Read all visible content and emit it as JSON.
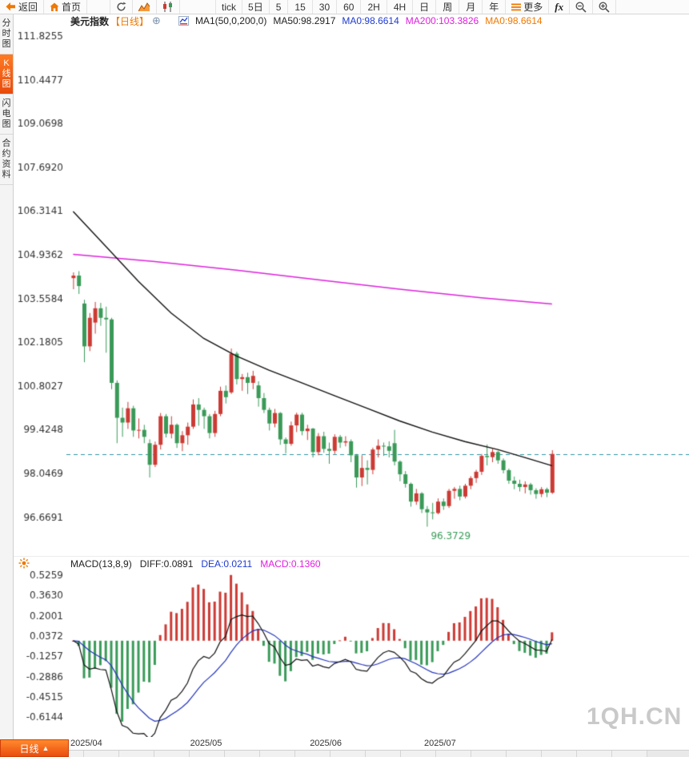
{
  "toolbar": {
    "back": "返回",
    "home": "首页",
    "tick": "tick",
    "five_day": "5日",
    "periods": [
      "5",
      "15",
      "30",
      "60",
      "2H",
      "4H",
      "日",
      "周",
      "月",
      "年"
    ],
    "more": "更多",
    "fx": "fx"
  },
  "sidebar": {
    "items": [
      {
        "label": "分时图",
        "active": false
      },
      {
        "label": "K线图",
        "active": true
      },
      {
        "label": "闪电图",
        "active": false
      },
      {
        "label": "合约资料",
        "active": false
      }
    ]
  },
  "chart_header": {
    "title": "美元指数",
    "period_tag": "【日线】",
    "add_symbol": "⊕",
    "ma_group": "MA1(50,0,200,0)",
    "ma50": "MA50:98.2917",
    "ma0_blue": "MA0:98.6614",
    "ma200": "MA200:103.3826",
    "ma0_orange": "MA0:98.6614"
  },
  "macd_header": {
    "name": "MACD(13,8,9)",
    "diff": "DIFF:0.0891",
    "dea": "DEA:0.0211",
    "macd": "MACD:0.1360"
  },
  "bottom": {
    "period_tab": "日线",
    "tab_arrow": "▲"
  },
  "watermark": "1QH.CN",
  "chart_data": {
    "type": "candlestick",
    "symbol": "美元指数",
    "interval": "日线",
    "current_price": 98.6614,
    "y_ticks": [
      111.8255,
      110.4477,
      109.0698,
      107.692,
      106.3141,
      104.9362,
      103.5584,
      102.1805,
      100.8027,
      99.4248,
      98.0469,
      96.6691
    ],
    "x_ticks": [
      {
        "index": 0,
        "label": "2025/04"
      },
      {
        "index": 22,
        "label": "2025/05"
      },
      {
        "index": 44,
        "label": "2025/06"
      },
      {
        "index": 65,
        "label": "2025/07"
      }
    ],
    "low_annotation": {
      "index": 65,
      "label": "96.3729"
    },
    "candles": [
      [
        104.2,
        104.38,
        103.85,
        104.28
      ],
      [
        104.28,
        104.42,
        103.7,
        103.95
      ],
      [
        103.4,
        103.52,
        101.55,
        102.05
      ],
      [
        102.05,
        103.1,
        101.9,
        102.95
      ],
      [
        102.8,
        103.45,
        102.45,
        103.25
      ],
      [
        103.25,
        103.42,
        102.7,
        102.95
      ],
      [
        102.95,
        103.3,
        101.85,
        102.9
      ],
      [
        102.9,
        102.95,
        100.7,
        100.9
      ],
      [
        100.9,
        100.98,
        99.0,
        99.8
      ],
      [
        99.8,
        100.12,
        99.2,
        99.65
      ],
      [
        99.65,
        100.3,
        99.45,
        100.1
      ],
      [
        100.1,
        100.18,
        99.2,
        99.4
      ],
      [
        99.4,
        99.78,
        99.15,
        99.42
      ],
      [
        99.42,
        99.58,
        99.0,
        99.2
      ],
      [
        99.0,
        99.12,
        97.92,
        98.32
      ],
      [
        98.32,
        99.05,
        98.25,
        98.95
      ],
      [
        98.95,
        99.95,
        98.8,
        99.85
      ],
      [
        99.85,
        99.92,
        99.18,
        99.3
      ],
      [
        99.3,
        99.85,
        99.15,
        99.58
      ],
      [
        99.58,
        99.62,
        98.85,
        99.0
      ],
      [
        99.0,
        99.38,
        98.75,
        99.25
      ],
      [
        99.25,
        99.65,
        98.95,
        99.52
      ],
      [
        99.52,
        100.38,
        99.45,
        100.22
      ],
      [
        100.22,
        100.42,
        99.55,
        100.05
      ],
      [
        100.05,
        100.12,
        99.45,
        99.85
      ],
      [
        99.85,
        99.92,
        99.15,
        99.32
      ],
      [
        99.32,
        100.02,
        99.2,
        99.92
      ],
      [
        99.92,
        100.78,
        99.85,
        100.65
      ],
      [
        100.65,
        100.82,
        100.25,
        100.45
      ],
      [
        100.6,
        101.98,
        100.55,
        101.82
      ],
      [
        101.82,
        101.88,
        100.85,
        101.02
      ],
      [
        101.02,
        101.18,
        100.65,
        101.08
      ],
      [
        101.08,
        101.22,
        100.55,
        100.9
      ],
      [
        100.9,
        101.28,
        100.7,
        101.12
      ],
      [
        100.82,
        100.95,
        100.15,
        100.42
      ],
      [
        100.42,
        100.58,
        99.95,
        100.05
      ],
      [
        100.05,
        100.12,
        99.4,
        99.62
      ],
      [
        99.62,
        100.08,
        99.5,
        99.95
      ],
      [
        99.95,
        99.98,
        98.95,
        99.12
      ],
      [
        99.12,
        99.18,
        98.68,
        98.98
      ],
      [
        98.98,
        99.68,
        98.92,
        99.56
      ],
      [
        99.56,
        99.96,
        99.35,
        99.9
      ],
      [
        99.9,
        99.96,
        99.25,
        99.38
      ],
      [
        99.38,
        99.58,
        99.1,
        99.46
      ],
      [
        99.46,
        99.48,
        98.55,
        98.72
      ],
      [
        98.72,
        99.32,
        98.62,
        99.22
      ],
      [
        99.22,
        99.36,
        98.7,
        98.82
      ],
      [
        98.82,
        99.02,
        98.35,
        98.76
      ],
      [
        98.76,
        99.28,
        98.66,
        99.2
      ],
      [
        99.2,
        99.26,
        98.85,
        99.02
      ],
      [
        99.02,
        99.22,
        98.9,
        99.06
      ],
      [
        99.06,
        99.12,
        98.4,
        98.62
      ],
      [
        98.62,
        98.66,
        97.6,
        97.92
      ],
      [
        97.92,
        98.62,
        97.65,
        98.22
      ],
      [
        98.22,
        98.46,
        97.7,
        98.16
      ],
      [
        98.16,
        98.86,
        98.02,
        98.8
      ],
      [
        98.8,
        99.12,
        98.55,
        98.92
      ],
      [
        98.92,
        99.02,
        98.6,
        98.9
      ],
      [
        98.9,
        99.06,
        98.55,
        98.76
      ],
      [
        99.0,
        99.42,
        98.3,
        98.42
      ],
      [
        98.42,
        98.46,
        97.8,
        98.02
      ],
      [
        98.02,
        98.12,
        97.6,
        97.72
      ],
      [
        97.72,
        97.76,
        97.0,
        97.16
      ],
      [
        97.16,
        97.56,
        97.06,
        97.42
      ],
      [
        97.42,
        97.46,
        96.8,
        96.92
      ],
      [
        96.92,
        97.02,
        96.37,
        96.82
      ],
      [
        96.82,
        97.12,
        96.6,
        96.8
      ],
      [
        96.8,
        97.26,
        96.76,
        97.16
      ],
      [
        97.16,
        97.26,
        96.9,
        97.02
      ],
      [
        97.02,
        97.56,
        96.96,
        97.5
      ],
      [
        97.5,
        97.62,
        97.25,
        97.56
      ],
      [
        97.56,
        97.66,
        97.2,
        97.32
      ],
      [
        97.32,
        97.72,
        97.26,
        97.66
      ],
      [
        97.66,
        97.96,
        97.55,
        97.9
      ],
      [
        97.9,
        98.16,
        97.75,
        98.1
      ],
      [
        98.1,
        98.66,
        98.0,
        98.6
      ],
      [
        98.6,
        98.96,
        98.3,
        98.56
      ],
      [
        98.56,
        98.82,
        98.4,
        98.72
      ],
      [
        98.72,
        98.76,
        98.35,
        98.46
      ],
      [
        98.46,
        98.52,
        98.05,
        98.15
      ],
      [
        98.15,
        98.2,
        97.72,
        97.82
      ],
      [
        97.82,
        97.95,
        97.55,
        97.72
      ],
      [
        97.72,
        97.85,
        97.48,
        97.62
      ],
      [
        97.62,
        97.8,
        97.42,
        97.7
      ],
      [
        97.7,
        97.75,
        97.38,
        97.52
      ],
      [
        97.52,
        97.58,
        97.25,
        97.4
      ],
      [
        97.4,
        97.62,
        97.3,
        97.55
      ],
      [
        97.55,
        97.6,
        97.3,
        97.44
      ],
      [
        97.44,
        98.78,
        97.4,
        98.6614
      ]
    ],
    "ma50": [
      [
        0,
        106.3
      ],
      [
        6,
        105.2
      ],
      [
        12,
        104.1
      ],
      [
        18,
        103.1
      ],
      [
        24,
        102.3
      ],
      [
        30,
        101.75
      ],
      [
        36,
        101.3
      ],
      [
        42,
        100.9
      ],
      [
        48,
        100.5
      ],
      [
        54,
        100.1
      ],
      [
        60,
        99.7
      ],
      [
        66,
        99.35
      ],
      [
        72,
        99.05
      ],
      [
        78,
        98.8
      ],
      [
        83,
        98.55
      ],
      [
        88,
        98.2917
      ]
    ],
    "ma200": [
      [
        0,
        104.95
      ],
      [
        15,
        104.72
      ],
      [
        30,
        104.45
      ],
      [
        45,
        104.15
      ],
      [
        60,
        103.85
      ],
      [
        75,
        103.58
      ],
      [
        88,
        103.3826
      ]
    ],
    "macd": {
      "params": "13,8,9",
      "diff_last": 0.0891,
      "dea_last": 0.0211,
      "hist_last": 0.136,
      "y_ticks": [
        0.5259,
        0.363,
        0.2001,
        0.0372,
        -0.1257,
        -0.2886,
        -0.4515,
        -0.6144
      ]
    },
    "colors": {
      "up": "#cc3a34",
      "down": "#3a9a58",
      "ma50": "#111111",
      "ma200": "#dd22dd",
      "diff": "#111111",
      "dea": "#2233bb",
      "current": "#2f93a0",
      "axis_text": "#333333",
      "low_label": "#3a9a58"
    }
  }
}
